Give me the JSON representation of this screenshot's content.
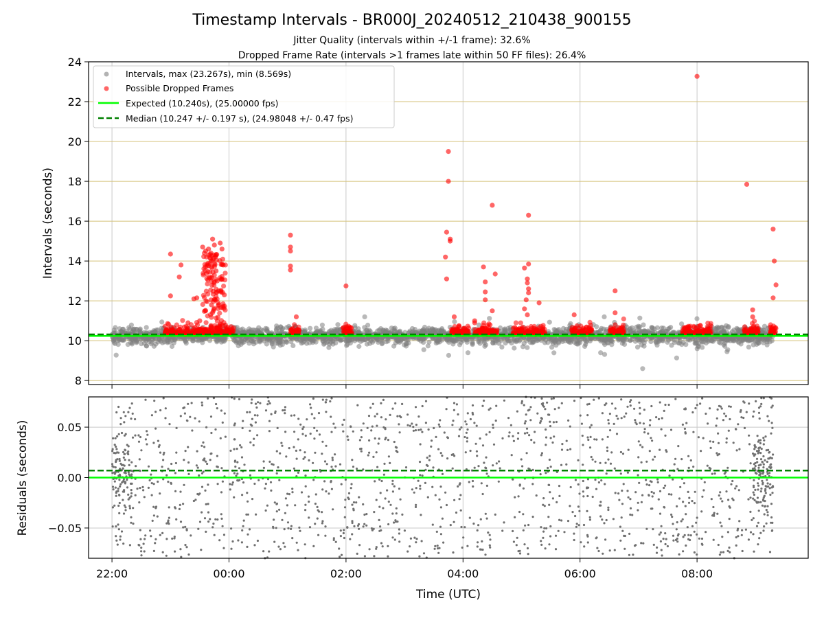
{
  "chart_data": [
    {
      "type": "scatter",
      "panel": "intervals",
      "title": "Timestamp Intervals - BR000J_20240512_210438_900155",
      "subtitle_lines": [
        "Jitter Quality (intervals within +/-1 frame): 32.6%",
        "Dropped Frame Rate (intervals >1 frames late within 50 FF files): 26.4%"
      ],
      "ylabel": "Intervals (seconds)",
      "xlabel": "",
      "x_unit": "hours (UTC, relative to 00:00)",
      "xlim": [
        -2.4,
        9.9
      ],
      "ylim": [
        7.8,
        24
      ],
      "yticks": [
        8,
        10,
        12,
        14,
        16,
        18,
        20,
        22,
        24
      ],
      "grid": true,
      "legend_position": "top-left",
      "expected_value": 10.24,
      "median_value": 10.247,
      "series": [
        {
          "name": "Intervals, max (23.267s), min (8.569s)",
          "color": "#808080",
          "marker": "circle",
          "x_range": [
            -2.0,
            9.3
          ],
          "center": 10.25,
          "spread": 0.32
        },
        {
          "name": "Possible Dropped Frames",
          "color": "#ff0000",
          "marker": "circle",
          "points": [
            [
              -1.0,
              14.35
            ],
            [
              -1.0,
              12.25
            ],
            [
              -0.82,
              13.8
            ],
            [
              -0.85,
              13.2
            ],
            [
              -0.6,
              12.1
            ],
            [
              -0.55,
              12.15
            ],
            [
              -0.45,
              14.7
            ],
            [
              -0.4,
              14.5
            ],
            [
              -0.35,
              14.6
            ],
            [
              -0.3,
              14.0
            ],
            [
              -0.28,
              15.1
            ],
            [
              -0.25,
              14.8
            ],
            [
              -0.22,
              13.5
            ],
            [
              -0.2,
              13.0
            ],
            [
              -0.18,
              12.5
            ],
            [
              -0.15,
              14.9
            ],
            [
              -0.12,
              14.6
            ],
            [
              -0.1,
              13.8
            ],
            [
              -0.08,
              12.3
            ],
            [
              -0.3,
              11.8
            ],
            [
              -0.4,
              11.5
            ],
            [
              -0.5,
              11.0
            ],
            [
              -0.7,
              10.9
            ],
            [
              1.05,
              15.3
            ],
            [
              1.05,
              14.7
            ],
            [
              1.05,
              14.5
            ],
            [
              1.05,
              13.75
            ],
            [
              1.05,
              13.55
            ],
            [
              1.15,
              11.2
            ],
            [
              2.0,
              12.75
            ],
            [
              3.75,
              19.5
            ],
            [
              3.75,
              18.0
            ],
            [
              3.72,
              15.45
            ],
            [
              3.78,
              15.1
            ],
            [
              3.78,
              15.0
            ],
            [
              3.7,
              14.2
            ],
            [
              3.72,
              13.1
            ],
            [
              3.85,
              11.2
            ],
            [
              4.2,
              11.0
            ],
            [
              4.2,
              10.9
            ],
            [
              4.5,
              16.8
            ],
            [
              4.35,
              13.7
            ],
            [
              4.38,
              12.95
            ],
            [
              4.38,
              12.45
            ],
            [
              4.38,
              12.05
            ],
            [
              4.5,
              11.5
            ],
            [
              4.55,
              13.35
            ],
            [
              5.05,
              13.65
            ],
            [
              5.1,
              13.1
            ],
            [
              5.1,
              12.9
            ],
            [
              5.12,
              12.6
            ],
            [
              5.12,
              12.4
            ],
            [
              5.08,
              12.05
            ],
            [
              5.05,
              11.6
            ],
            [
              5.1,
              11.3
            ],
            [
              5.12,
              16.3
            ],
            [
              5.12,
              13.85
            ],
            [
              5.3,
              11.9
            ],
            [
              5.9,
              11.3
            ],
            [
              6.6,
              12.5
            ],
            [
              6.6,
              11.4
            ],
            [
              8.0,
              23.27
            ],
            [
              8.85,
              17.85
            ],
            [
              8.95,
              11.55
            ],
            [
              8.95,
              11.2
            ],
            [
              9.3,
              15.6
            ],
            [
              9.32,
              14.0
            ],
            [
              9.3,
              12.15
            ],
            [
              9.35,
              12.8
            ]
          ],
          "clusters": [
            [
              -1.1,
              -0.05
            ],
            [
              -0.05,
              0.08
            ],
            [
              1.05,
              1.2
            ],
            [
              1.95,
              2.1
            ],
            [
              3.8,
              4.1
            ],
            [
              4.2,
              4.6
            ],
            [
              4.85,
              5.4
            ],
            [
              5.85,
              6.2
            ],
            [
              6.5,
              6.75
            ],
            [
              7.75,
              8.25
            ],
            [
              8.8,
              9.05
            ],
            [
              9.25,
              9.35
            ]
          ]
        },
        {
          "name": "Expected (10.240s), (25.00000 fps)",
          "color": "#00ff00",
          "line": "solid",
          "y": 10.24
        },
        {
          "name": "Median (10.247 +/- 0.197 s), (24.98048 +/- 0.47 fps)",
          "color": "#008000",
          "line": "dashed",
          "y": 10.247
        }
      ]
    },
    {
      "type": "scatter",
      "panel": "residuals",
      "xlabel": "Time (UTC)",
      "ylabel": "Residuals (seconds)",
      "xlim": [
        -2.4,
        9.9
      ],
      "ylim": [
        -0.08,
        0.08
      ],
      "yticks": [
        -0.05,
        0.0,
        0.05
      ],
      "ytick_labels": [
        "−0.05",
        "0.00",
        "0.05"
      ],
      "xticks": [
        -2,
        0,
        2,
        4,
        6,
        8
      ],
      "xtick_labels": [
        "22:00",
        "00:00",
        "02:00",
        "04:00",
        "06:00",
        "08:00"
      ],
      "grid": true,
      "residual_mean": 0.007,
      "series": [
        {
          "name": "",
          "color": "#707070",
          "marker": "dot",
          "x_range": [
            -2.0,
            9.3
          ],
          "y_range": [
            -0.08,
            0.08
          ]
        },
        {
          "name": "",
          "color": "#00ff00",
          "line": "solid",
          "y": 0.0
        },
        {
          "name": "",
          "color": "#008000",
          "line": "dashed",
          "y": 0.007
        }
      ]
    }
  ]
}
